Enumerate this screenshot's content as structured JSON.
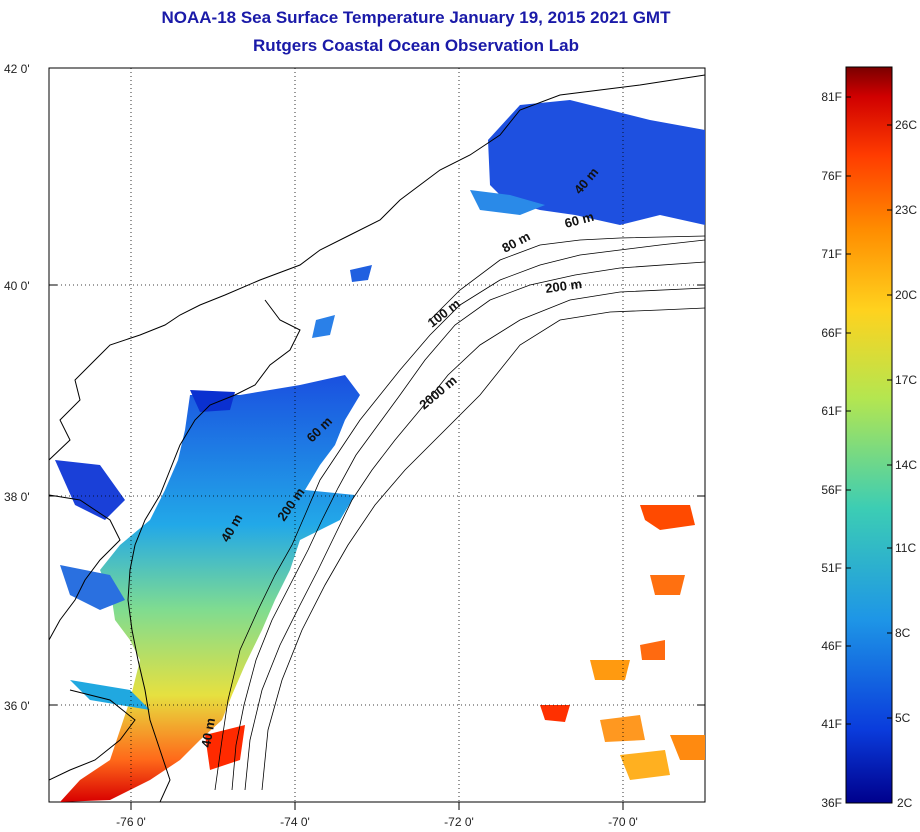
{
  "title": "NOAA-18 Sea Surface Temperature January 19, 2015 2021 GMT",
  "subtitle": "Rutgers Coastal Ocean Observation Lab",
  "map": {
    "lat_labels": [
      "42 0'",
      "40 0'",
      "38 0'",
      "36 0'"
    ],
    "lon_labels": [
      "-76 0'",
      "-74 0'",
      "-72 0'",
      "-70 0'"
    ],
    "lat_range": [
      35,
      42.15
    ],
    "lon_range": [
      -77,
      -69
    ],
    "grid": "dotted"
  },
  "contours": [
    {
      "label": "40 m"
    },
    {
      "label": "60 m"
    },
    {
      "label": "80 m"
    },
    {
      "label": "200 m"
    },
    {
      "label": "100 m"
    },
    {
      "label": "2000 m"
    },
    {
      "label": "60 m"
    },
    {
      "label": "200 m"
    },
    {
      "label": "40 m"
    },
    {
      "label": "40 m"
    }
  ],
  "colorbar": {
    "fahrenheit": [
      "81F",
      "76F",
      "71F",
      "66F",
      "61F",
      "56F",
      "51F",
      "46F",
      "41F",
      "36F"
    ],
    "celsius": [
      "26C",
      "23C",
      "20C",
      "17C",
      "14C",
      "11C",
      "8C",
      "5C",
      "2C"
    ],
    "scale_colors": [
      "#7a0000",
      "#d00000",
      "#ff3c00",
      "#ff8c00",
      "#ffd21e",
      "#b4e650",
      "#3ccdb4",
      "#1e96e6",
      "#0a3cdc",
      "#00008c"
    ]
  }
}
